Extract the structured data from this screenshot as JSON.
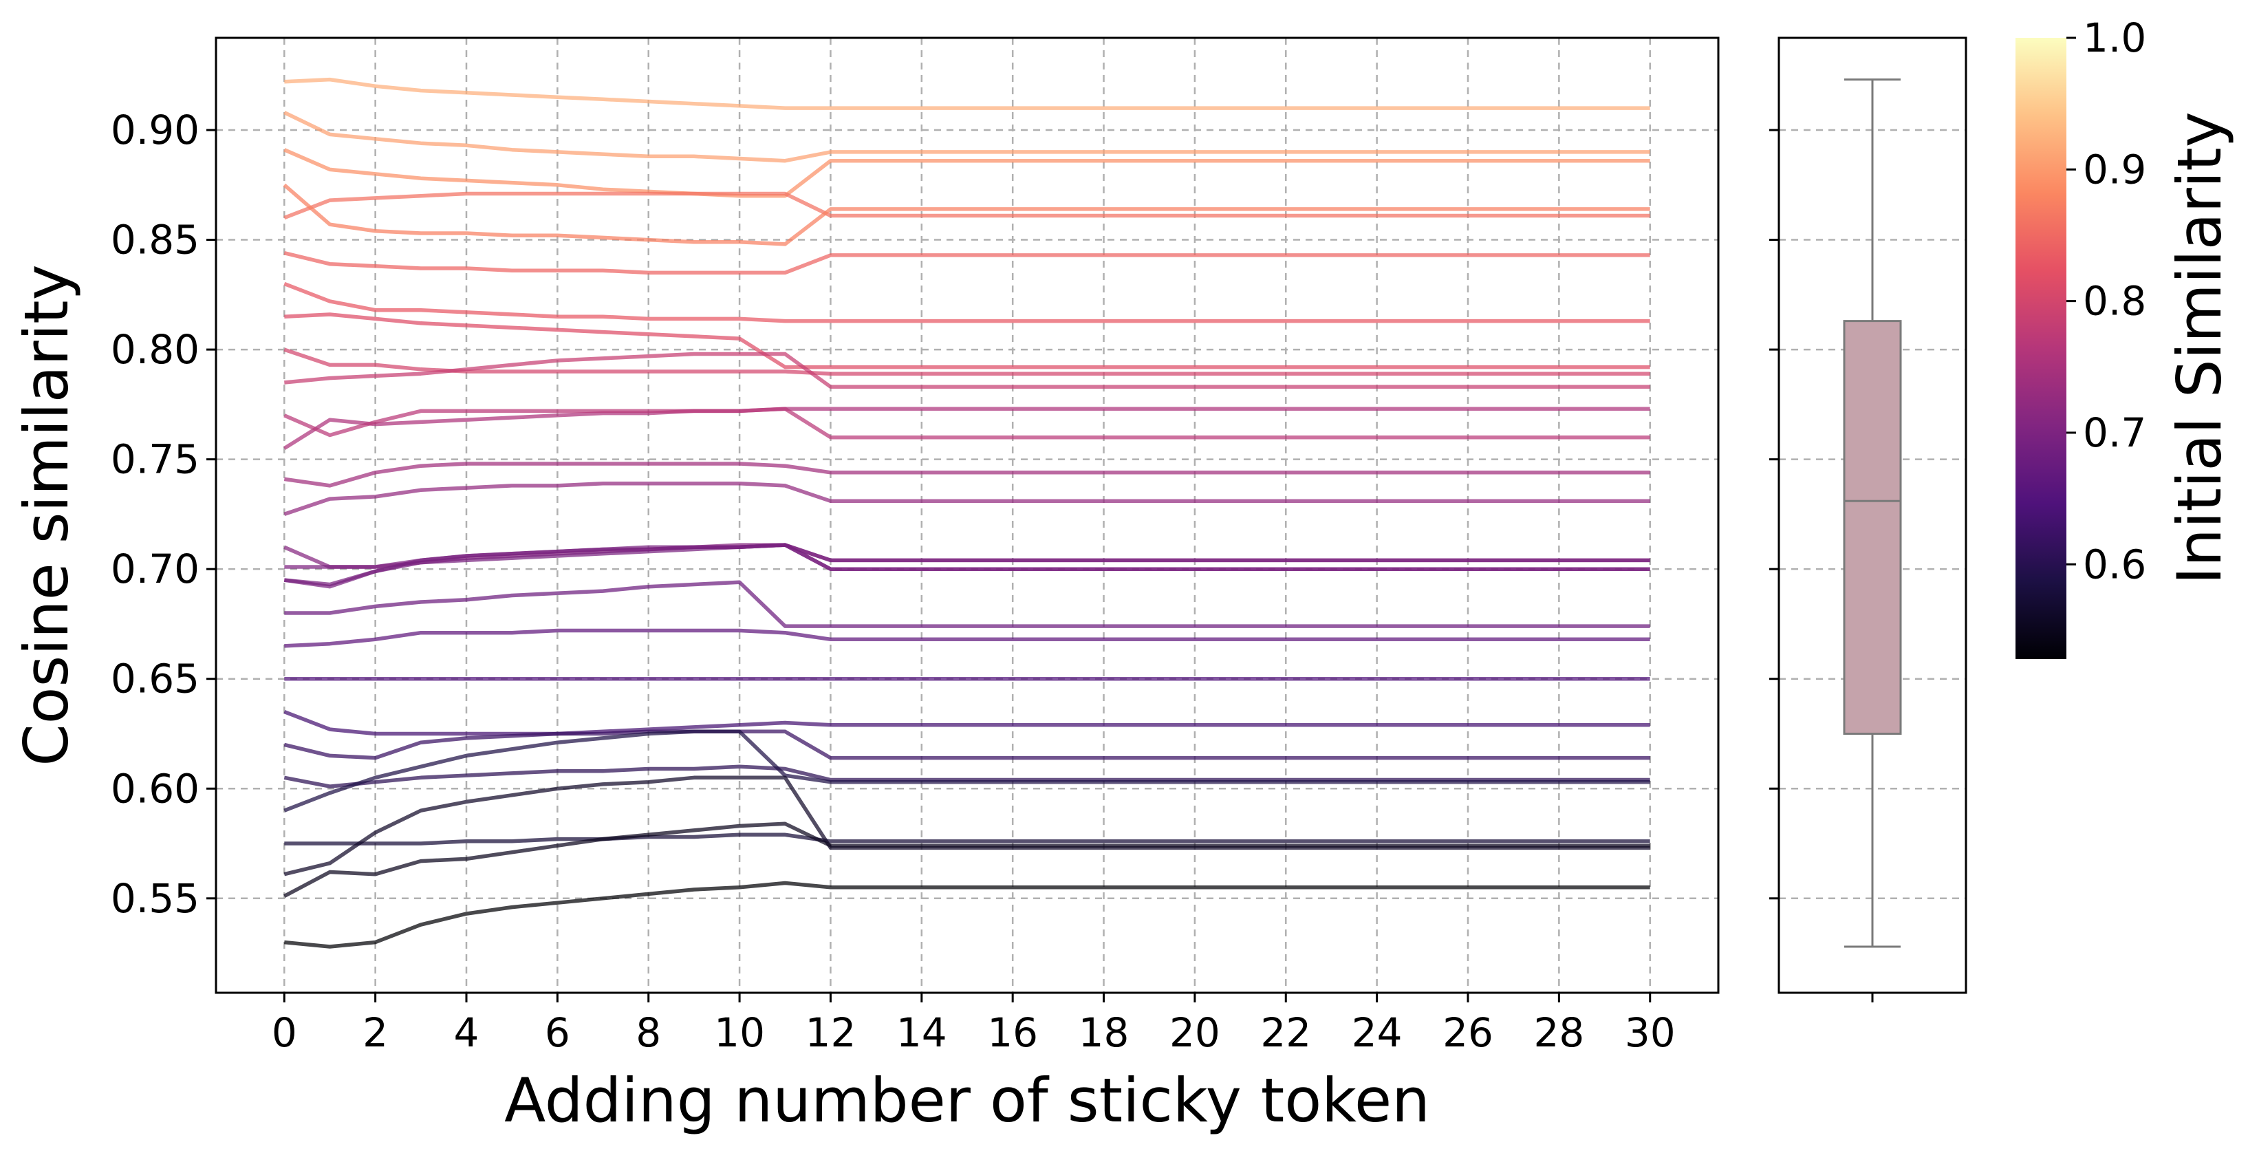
{
  "chart_data": [
    {
      "type": "line",
      "xlabel": "Adding number of sticky token",
      "ylabel": "Cosine similarity",
      "x_ticks": [
        0,
        2,
        4,
        6,
        8,
        10,
        12,
        14,
        16,
        18,
        20,
        22,
        24,
        26,
        28,
        30
      ],
      "y_ticks": [
        0.55,
        0.6,
        0.65,
        0.7,
        0.75,
        0.8,
        0.85,
        0.9
      ],
      "y_tick_labels": [
        "0.55",
        "0.60",
        "0.65",
        "0.70",
        "0.75",
        "0.80",
        "0.85",
        "0.90"
      ],
      "x_tick_labels": [
        "0",
        "2",
        "4",
        "6",
        "8",
        "10",
        "12",
        "14",
        "16",
        "18",
        "20",
        "22",
        "24",
        "26",
        "28",
        "30"
      ],
      "xlim": [
        -1.5,
        31.5
      ],
      "ylim": [
        0.507,
        0.942
      ],
      "grid": true,
      "colormap": "magma",
      "x": [
        0,
        1,
        2,
        3,
        4,
        5,
        6,
        7,
        8,
        9,
        10,
        11,
        12,
        30
      ],
      "series": [
        {
          "values": [
            0.922,
            0.923,
            0.92,
            0.918,
            0.917,
            0.916,
            0.915,
            0.914,
            0.913,
            0.912,
            0.911,
            0.91,
            0.91,
            0.91
          ]
        },
        {
          "values": [
            0.908,
            0.898,
            0.896,
            0.894,
            0.893,
            0.891,
            0.89,
            0.889,
            0.888,
            0.888,
            0.887,
            0.886,
            0.89,
            0.89
          ]
        },
        {
          "values": [
            0.891,
            0.882,
            0.88,
            0.878,
            0.877,
            0.876,
            0.875,
            0.873,
            0.872,
            0.871,
            0.87,
            0.87,
            0.886,
            0.886
          ]
        },
        {
          "values": [
            0.86,
            0.868,
            0.869,
            0.87,
            0.871,
            0.871,
            0.871,
            0.871,
            0.871,
            0.871,
            0.871,
            0.871,
            0.861,
            0.861
          ]
        },
        {
          "values": [
            0.875,
            0.857,
            0.854,
            0.853,
            0.853,
            0.852,
            0.852,
            0.851,
            0.85,
            0.849,
            0.849,
            0.848,
            0.864,
            0.864
          ]
        },
        {
          "values": [
            0.844,
            0.839,
            0.838,
            0.837,
            0.837,
            0.836,
            0.836,
            0.836,
            0.835,
            0.835,
            0.835,
            0.835,
            0.843,
            0.843
          ]
        },
        {
          "values": [
            0.83,
            0.822,
            0.818,
            0.818,
            0.817,
            0.816,
            0.815,
            0.815,
            0.814,
            0.814,
            0.814,
            0.813,
            0.813,
            0.813
          ]
        },
        {
          "values": [
            0.815,
            0.816,
            0.814,
            0.812,
            0.811,
            0.81,
            0.809,
            0.808,
            0.807,
            0.806,
            0.805,
            0.792,
            0.792,
            0.792
          ]
        },
        {
          "values": [
            0.8,
            0.793,
            0.793,
            0.791,
            0.79,
            0.79,
            0.79,
            0.79,
            0.79,
            0.79,
            0.79,
            0.79,
            0.789,
            0.789
          ]
        },
        {
          "values": [
            0.785,
            0.787,
            0.788,
            0.789,
            0.791,
            0.793,
            0.795,
            0.796,
            0.797,
            0.798,
            0.798,
            0.798,
            0.783,
            0.783
          ]
        },
        {
          "values": [
            0.755,
            0.768,
            0.766,
            0.767,
            0.768,
            0.769,
            0.77,
            0.771,
            0.771,
            0.772,
            0.772,
            0.773,
            0.773,
            0.773
          ]
        },
        {
          "values": [
            0.77,
            0.761,
            0.767,
            0.772,
            0.772,
            0.772,
            0.772,
            0.772,
            0.772,
            0.772,
            0.772,
            0.773,
            0.76,
            0.76
          ]
        },
        {
          "values": [
            0.741,
            0.738,
            0.744,
            0.747,
            0.748,
            0.748,
            0.748,
            0.748,
            0.748,
            0.748,
            0.748,
            0.747,
            0.744,
            0.744
          ]
        },
        {
          "values": [
            0.725,
            0.732,
            0.733,
            0.736,
            0.737,
            0.738,
            0.738,
            0.739,
            0.739,
            0.739,
            0.739,
            0.738,
            0.731,
            0.731
          ]
        },
        {
          "values": [
            0.71,
            0.701,
            0.701,
            0.703,
            0.705,
            0.706,
            0.707,
            0.708,
            0.709,
            0.71,
            0.711,
            0.711,
            0.704,
            0.704
          ]
        },
        {
          "values": [
            0.701,
            0.701,
            0.701,
            0.704,
            0.706,
            0.707,
            0.708,
            0.709,
            0.709,
            0.71,
            0.71,
            0.711,
            0.7,
            0.7
          ]
        },
        {
          "values": [
            0.695,
            0.692,
            0.699,
            0.704,
            0.706,
            0.707,
            0.708,
            0.709,
            0.71,
            0.71,
            0.71,
            0.711,
            0.7,
            0.7
          ]
        },
        {
          "values": [
            0.695,
            0.693,
            0.699,
            0.703,
            0.704,
            0.705,
            0.706,
            0.707,
            0.708,
            0.709,
            0.71,
            0.711,
            0.704,
            0.704
          ]
        },
        {
          "values": [
            0.68,
            0.68,
            0.683,
            0.685,
            0.686,
            0.688,
            0.689,
            0.69,
            0.692,
            0.693,
            0.694,
            0.674,
            0.674,
            0.674
          ]
        },
        {
          "values": [
            0.665,
            0.666,
            0.668,
            0.671,
            0.671,
            0.671,
            0.672,
            0.672,
            0.672,
            0.672,
            0.672,
            0.671,
            0.668,
            0.668
          ]
        },
        {
          "values": [
            0.65,
            0.65,
            0.65,
            0.65,
            0.65,
            0.65,
            0.65,
            0.65,
            0.65,
            0.65,
            0.65,
            0.65,
            0.65,
            0.65
          ]
        },
        {
          "values": [
            0.635,
            0.627,
            0.625,
            0.625,
            0.625,
            0.625,
            0.625,
            0.626,
            0.627,
            0.628,
            0.629,
            0.63,
            0.629,
            0.629
          ]
        },
        {
          "values": [
            0.62,
            0.615,
            0.614,
            0.621,
            0.623,
            0.624,
            0.625,
            0.625,
            0.626,
            0.626,
            0.626,
            0.626,
            0.614,
            0.614
          ]
        },
        {
          "values": [
            0.605,
            0.601,
            0.603,
            0.605,
            0.606,
            0.607,
            0.608,
            0.608,
            0.609,
            0.609,
            0.61,
            0.609,
            0.604,
            0.604
          ]
        },
        {
          "values": [
            0.59,
            0.598,
            0.605,
            0.61,
            0.615,
            0.618,
            0.621,
            0.623,
            0.625,
            0.626,
            0.626,
            0.606,
            0.603,
            0.603
          ]
        },
        {
          "values": [
            0.575,
            0.575,
            0.575,
            0.575,
            0.576,
            0.576,
            0.577,
            0.577,
            0.578,
            0.578,
            0.579,
            0.579,
            0.576,
            0.576
          ]
        },
        {
          "values": [
            0.561,
            0.566,
            0.58,
            0.59,
            0.594,
            0.597,
            0.6,
            0.602,
            0.603,
            0.605,
            0.605,
            0.605,
            0.573,
            0.573
          ]
        },
        {
          "values": [
            0.551,
            0.562,
            0.561,
            0.567,
            0.568,
            0.571,
            0.574,
            0.577,
            0.579,
            0.581,
            0.583,
            0.584,
            0.574,
            0.574
          ]
        },
        {
          "values": [
            0.53,
            0.528,
            0.53,
            0.538,
            0.543,
            0.546,
            0.548,
            0.55,
            0.552,
            0.554,
            0.555,
            0.557,
            0.555,
            0.555
          ]
        }
      ]
    },
    {
      "type": "box",
      "ylim": [
        0.507,
        0.942
      ],
      "whisker_low": 0.528,
      "q1": 0.625,
      "median": 0.731,
      "q3": 0.813,
      "whisker_high": 0.923,
      "box_color": "#c5a3ab",
      "line_color": "#7a7a7a"
    },
    {
      "type": "colorbar",
      "label": "Initial Similarity",
      "colormap": "magma",
      "range": [
        0.528,
        1.0
      ],
      "ticks": [
        0.6,
        0.7,
        0.8,
        0.9,
        1.0
      ],
      "tick_labels": [
        "0.6",
        "0.7",
        "0.8",
        "0.9",
        "1.0"
      ]
    }
  ]
}
